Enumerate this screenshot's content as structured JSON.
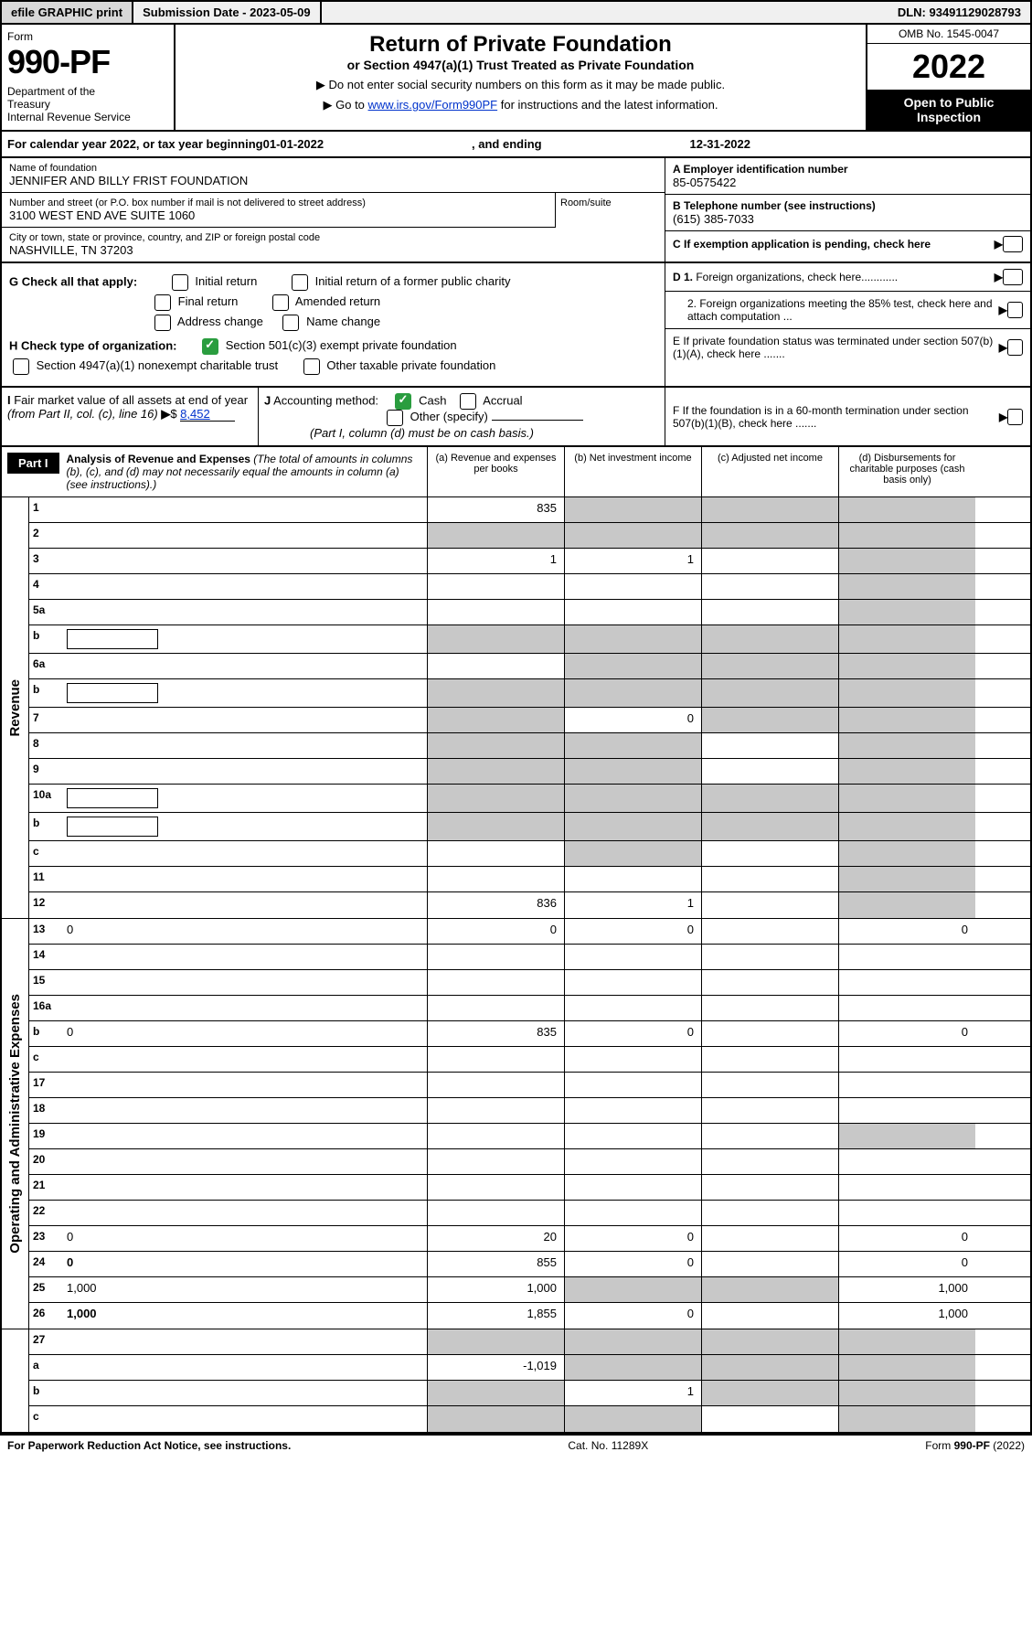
{
  "top": {
    "efile": "efile GRAPHIC print",
    "submission_label": "Submission Date - 2023-05-09",
    "dln": "DLN: 93491129028793"
  },
  "header": {
    "form_label": "Form",
    "form_num": "990-PF",
    "dept": "Department of the Treasury\nInternal Revenue Service",
    "title": "Return of Private Foundation",
    "subtitle": "or Section 4947(a)(1) Trust Treated as Private Foundation",
    "inst1": "▶ Do not enter social security numbers on this form as it may be made public.",
    "inst2": "▶ Go to ",
    "inst2_link": "www.irs.gov/Form990PF",
    "inst2_tail": " for instructions and the latest information.",
    "omb": "OMB No. 1545-0047",
    "year": "2022",
    "inspection": "Open to Public Inspection"
  },
  "cal_year": {
    "prefix": "For calendar year 2022, or tax year beginning ",
    "begin": "01-01-2022",
    "mid": ", and ending ",
    "end": "12-31-2022"
  },
  "info": {
    "name_label": "Name of foundation",
    "name": "JENNIFER AND BILLY FRIST FOUNDATION",
    "addr_label": "Number and street (or P.O. box number if mail is not delivered to street address)",
    "addr": "3100 WEST END AVE SUITE 1060",
    "room_label": "Room/suite",
    "city_label": "City or town, state or province, country, and ZIP or foreign postal code",
    "city": "NASHVILLE, TN  37203",
    "ein_label": "A Employer identification number",
    "ein": "85-0575422",
    "phone_label": "B Telephone number (see instructions)",
    "phone": "(615) 385-7033",
    "pending_label": "C If exemption application is pending, check here"
  },
  "checks": {
    "g_label": "G Check all that apply:",
    "initial": "Initial return",
    "initial_former": "Initial return of a former public charity",
    "final": "Final return",
    "amended": "Amended return",
    "addr_change": "Address change",
    "name_change": "Name change",
    "h_label": "H Check type of organization:",
    "h_501c3": "Section 501(c)(3) exempt private foundation",
    "h_4947": "Section 4947(a)(1) nonexempt charitable trust",
    "h_other": "Other taxable private foundation",
    "d1": "D 1. Foreign organizations, check here............",
    "d2": "2. Foreign organizations meeting the 85% test, check here and attach computation ...",
    "e": "E  If private foundation status was terminated under section 507(b)(1)(A), check here .......",
    "f": "F  If the foundation is in a 60-month termination under section 507(b)(1)(B), check here .......",
    "i_label": "I Fair market value of all assets at end of year (from Part II, col. (c), line 16)",
    "i_value": "8,452",
    "j_label": "J Accounting method:",
    "j_cash": "Cash",
    "j_accrual": "Accrual",
    "j_other": "Other (specify)",
    "j_note": "(Part I, column (d) must be on cash basis.)"
  },
  "part1": {
    "label": "Part I",
    "title": "Analysis of Revenue and Expenses",
    "title_note": "(The total of amounts in columns (b), (c), and (d) may not necessarily equal the amounts in column (a) (see instructions).)",
    "col_a": "(a)   Revenue and expenses per books",
    "col_b": "(b)   Net investment income",
    "col_c": "(c)   Adjusted net income",
    "col_d": "(d)   Disbursements for charitable purposes (cash basis only)"
  },
  "sections": {
    "revenue": "Revenue",
    "ops": "Operating and Administrative Expenses"
  },
  "rows": [
    {
      "n": "1",
      "d": "",
      "a": "835",
      "b": "",
      "c": "",
      "ga": false,
      "gb": true,
      "gc": true,
      "gd": true
    },
    {
      "n": "2",
      "d": "",
      "a": "",
      "b": "",
      "c": "",
      "ga": true,
      "gb": true,
      "gc": true,
      "gd": true,
      "bold_not": true
    },
    {
      "n": "3",
      "d": "",
      "a": "1",
      "b": "1",
      "c": "",
      "ga": false,
      "gb": false,
      "gc": false,
      "gd": true
    },
    {
      "n": "4",
      "d": "",
      "a": "",
      "b": "",
      "c": "",
      "ga": false,
      "gb": false,
      "gc": false,
      "gd": true
    },
    {
      "n": "5a",
      "d": "",
      "a": "",
      "b": "",
      "c": "",
      "ga": false,
      "gb": false,
      "gc": false,
      "gd": true
    },
    {
      "n": "b",
      "d": "",
      "a": "",
      "b": "",
      "c": "",
      "ga": true,
      "gb": true,
      "gc": true,
      "gd": true,
      "inner": true
    },
    {
      "n": "6a",
      "d": "",
      "a": "",
      "b": "",
      "c": "",
      "ga": false,
      "gb": true,
      "gc": true,
      "gd": true
    },
    {
      "n": "b",
      "d": "",
      "a": "",
      "b": "",
      "c": "",
      "ga": true,
      "gb": true,
      "gc": true,
      "gd": true,
      "inner": true
    },
    {
      "n": "7",
      "d": "",
      "a": "",
      "b": "0",
      "c": "",
      "ga": true,
      "gb": false,
      "gc": true,
      "gd": true
    },
    {
      "n": "8",
      "d": "",
      "a": "",
      "b": "",
      "c": "",
      "ga": true,
      "gb": true,
      "gc": false,
      "gd": true
    },
    {
      "n": "9",
      "d": "",
      "a": "",
      "b": "",
      "c": "",
      "ga": true,
      "gb": true,
      "gc": false,
      "gd": true
    },
    {
      "n": "10a",
      "d": "",
      "a": "",
      "b": "",
      "c": "",
      "ga": true,
      "gb": true,
      "gc": true,
      "gd": true,
      "inner": true
    },
    {
      "n": "b",
      "d": "",
      "a": "",
      "b": "",
      "c": "",
      "ga": true,
      "gb": true,
      "gc": true,
      "gd": true,
      "inner": true
    },
    {
      "n": "c",
      "d": "",
      "a": "",
      "b": "",
      "c": "",
      "ga": false,
      "gb": true,
      "gc": false,
      "gd": true
    },
    {
      "n": "11",
      "d": "",
      "a": "",
      "b": "",
      "c": "",
      "ga": false,
      "gb": false,
      "gc": false,
      "gd": true
    },
    {
      "n": "12",
      "d": "",
      "a": "836",
      "b": "1",
      "c": "",
      "ga": false,
      "gb": false,
      "gc": false,
      "gd": true,
      "bold": true
    }
  ],
  "exp_rows": [
    {
      "n": "13",
      "d": "0",
      "a": "0",
      "b": "0",
      "c": "",
      "ga": false,
      "gb": false,
      "gc": false,
      "gd": false
    },
    {
      "n": "14",
      "d": "",
      "a": "",
      "b": "",
      "c": "",
      "ga": false,
      "gb": false,
      "gc": false,
      "gd": false
    },
    {
      "n": "15",
      "d": "",
      "a": "",
      "b": "",
      "c": "",
      "ga": false,
      "gb": false,
      "gc": false,
      "gd": false
    },
    {
      "n": "16a",
      "d": "",
      "a": "",
      "b": "",
      "c": "",
      "ga": false,
      "gb": false,
      "gc": false,
      "gd": false
    },
    {
      "n": "b",
      "d": "0",
      "a": "835",
      "b": "0",
      "c": "",
      "ga": false,
      "gb": false,
      "gc": false,
      "gd": false
    },
    {
      "n": "c",
      "d": "",
      "a": "",
      "b": "",
      "c": "",
      "ga": false,
      "gb": false,
      "gc": false,
      "gd": false
    },
    {
      "n": "17",
      "d": "",
      "a": "",
      "b": "",
      "c": "",
      "ga": false,
      "gb": false,
      "gc": false,
      "gd": false
    },
    {
      "n": "18",
      "d": "",
      "a": "",
      "b": "",
      "c": "",
      "ga": false,
      "gb": false,
      "gc": false,
      "gd": false
    },
    {
      "n": "19",
      "d": "",
      "a": "",
      "b": "",
      "c": "",
      "ga": false,
      "gb": false,
      "gc": false,
      "gd": true
    },
    {
      "n": "20",
      "d": "",
      "a": "",
      "b": "",
      "c": "",
      "ga": false,
      "gb": false,
      "gc": false,
      "gd": false
    },
    {
      "n": "21",
      "d": "",
      "a": "",
      "b": "",
      "c": "",
      "ga": false,
      "gb": false,
      "gc": false,
      "gd": false
    },
    {
      "n": "22",
      "d": "",
      "a": "",
      "b": "",
      "c": "",
      "ga": false,
      "gb": false,
      "gc": false,
      "gd": false
    },
    {
      "n": "23",
      "d": "0",
      "a": "20",
      "b": "0",
      "c": "",
      "ga": false,
      "gb": false,
      "gc": false,
      "gd": false
    },
    {
      "n": "24",
      "d": "0",
      "a": "855",
      "b": "0",
      "c": "",
      "ga": false,
      "gb": false,
      "gc": false,
      "gd": false,
      "bold": true
    },
    {
      "n": "25",
      "d": "1,000",
      "a": "1,000",
      "b": "",
      "c": "",
      "ga": false,
      "gb": true,
      "gc": true,
      "gd": false
    },
    {
      "n": "26",
      "d": "1,000",
      "a": "1,855",
      "b": "0",
      "c": "",
      "ga": false,
      "gb": false,
      "gc": false,
      "gd": false,
      "bold": true
    }
  ],
  "final_rows": [
    {
      "n": "27",
      "d": "",
      "a": "",
      "b": "",
      "c": "",
      "ga": true,
      "gb": true,
      "gc": true,
      "gd": true
    },
    {
      "n": "a",
      "d": "",
      "a": "-1,019",
      "b": "",
      "c": "",
      "ga": false,
      "gb": true,
      "gc": true,
      "gd": true,
      "bold": true
    },
    {
      "n": "b",
      "d": "",
      "a": "",
      "b": "1",
      "c": "",
      "ga": true,
      "gb": false,
      "gc": true,
      "gd": true,
      "bold": true
    },
    {
      "n": "c",
      "d": "",
      "a": "",
      "b": "",
      "c": "",
      "ga": true,
      "gb": true,
      "gc": false,
      "gd": true,
      "bold": true
    }
  ],
  "footer": {
    "left": "For Paperwork Reduction Act Notice, see instructions.",
    "mid": "Cat. No. 11289X",
    "right": "Form 990-PF (2022)"
  }
}
